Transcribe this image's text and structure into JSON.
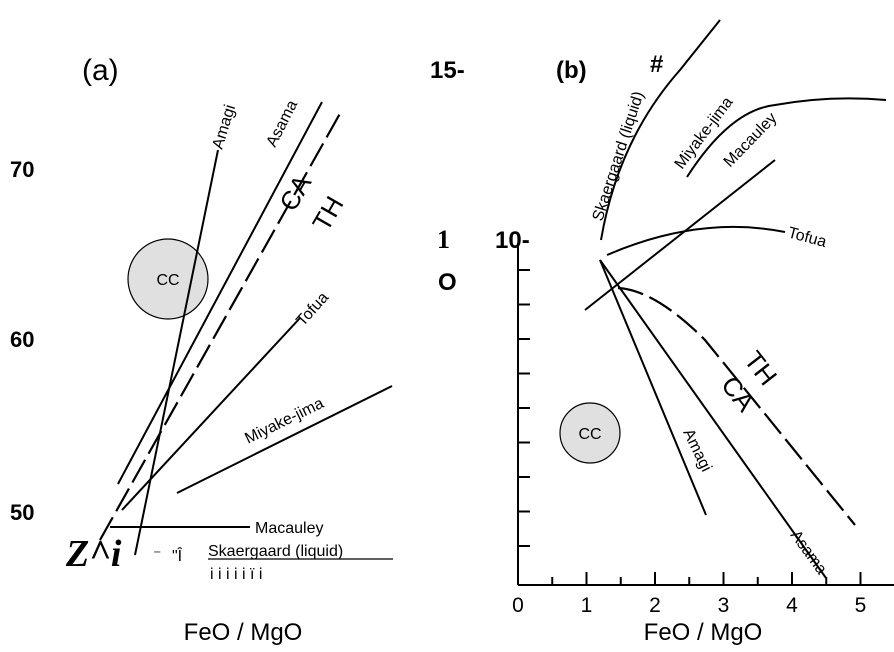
{
  "chart_data": [
    {
      "type": "line",
      "panel_label": "(a)",
      "xlabel": "FeO / MgO",
      "y_ticks": [
        "70",
        "60",
        "50"
      ],
      "ylim": [
        48,
        76
      ],
      "series": [
        {
          "name": "Amagi",
          "x": [
            0.4,
            2.45
          ],
          "y": [
            48.5,
            71.0
          ]
        },
        {
          "name": "Asama",
          "x": [
            0.15,
            4.3
          ],
          "y": [
            51.5,
            74.0
          ]
        },
        {
          "name": "CA",
          "x": [
            0.0,
            4.6
          ],
          "y": [
            48.5,
            73.0
          ]
        },
        {
          "name": "TH",
          "x": [
            0.0,
            5.0
          ],
          "y": [
            48.5,
            73.0
          ]
        },
        {
          "name": "Tofua",
          "x": [
            0.45,
            3.85
          ],
          "y": [
            51.5,
            63.0
          ]
        },
        {
          "name": "Miyake-jima",
          "x": [
            1.75,
            6.0
          ],
          "y": [
            51.2,
            57.5
          ]
        },
        {
          "name": "Macauley",
          "x": [
            0.3,
            2.9
          ],
          "y": [
            49.2,
            49.2
          ]
        }
      ],
      "annotations": [
        {
          "text": "CC",
          "shape": "circle",
          "x": 1.2,
          "y": 64.0
        },
        {
          "text": "Skaergaard (liquid)"
        }
      ],
      "stray_text": {
        "left": "Z^i",
        "mid": "\"Î",
        "dash": "⁻",
        "ticks": "i   i   i   i   i   ï   i"
      }
    },
    {
      "type": "line",
      "panel_label": "(b)",
      "panel_mark": "#",
      "xlabel": "FeO / MgO",
      "x_ticks": [
        0,
        1,
        2,
        3,
        4,
        5
      ],
      "y_ticks": [
        "15-",
        "10-"
      ],
      "y_side_chars": [
        "1",
        "O"
      ],
      "xlim": [
        0,
        5.2
      ],
      "ylim": [
        0,
        15.5
      ],
      "series": [
        {
          "name": "Skaergaard (liquid)",
          "x": [
            1.2,
            1.4,
            1.8,
            2.5,
            3.5
          ],
          "y": [
            10.0,
            11.8,
            13.6,
            15.2,
            16.0
          ]
        },
        {
          "name": "Miyake-jima",
          "x": [
            2.5,
            3.0,
            3.5,
            4.0,
            4.3,
            4.7,
            5.3
          ],
          "y": [
            12.5,
            13.8,
            14.6,
            14.9,
            14.9,
            14.6,
            14.0
          ]
        },
        {
          "name": "Macauley",
          "x": [
            0.9,
            3.3
          ],
          "y": [
            8.0,
            13.6
          ]
        },
        {
          "name": "Tofua",
          "x": [
            1.3,
            2.0,
            2.6,
            3.0,
            3.5
          ],
          "y": [
            9.6,
            10.2,
            10.4,
            10.3,
            9.9
          ]
        },
        {
          "name": "TH",
          "x": [
            1.5,
            1.9,
            2.5,
            3.5,
            4.6
          ],
          "y": [
            9.0,
            8.9,
            7.6,
            5.5,
            2.8
          ]
        },
        {
          "name": "CA",
          "x": [
            1.2,
            4.7
          ],
          "y": [
            9.5,
            1.5
          ]
        },
        {
          "name": "Amagi",
          "x": [
            1.2,
            2.7
          ],
          "y": [
            9.5,
            1.9
          ]
        },
        {
          "name": "Asama",
          "x": [
            1.2,
            4.0
          ],
          "y": [
            9.5,
            1.0
          ]
        }
      ],
      "annotations": [
        {
          "text": "CC",
          "shape": "circle",
          "x": 0.7,
          "y": 4.0
        }
      ]
    }
  ]
}
